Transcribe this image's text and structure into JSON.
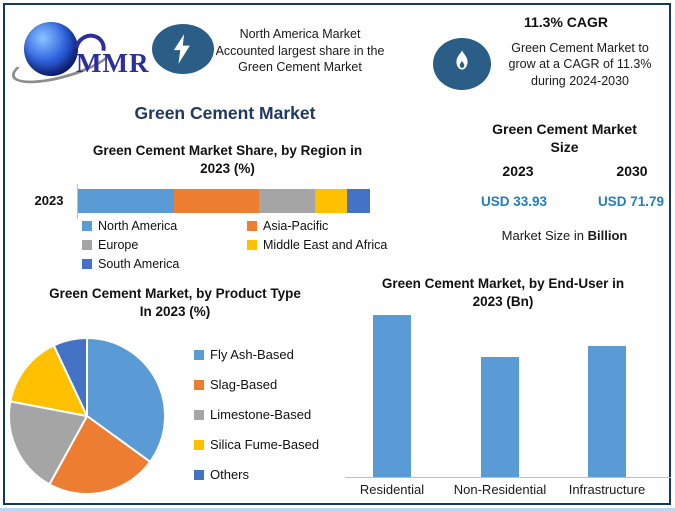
{
  "brand": {
    "logo_text": "MMR"
  },
  "header": {
    "highlight": {
      "icon": "lightning-icon",
      "lines": [
        "North America Market",
        "Accounted largest share in the",
        "Green Cement Market"
      ]
    },
    "cagr": {
      "icon": "flame-icon",
      "title": "11.3% CAGR",
      "lines": [
        "Green Cement Market to",
        "grow at a CAGR of 11.3%",
        "during 2024-2030"
      ]
    }
  },
  "main_title": "Green Cement Market",
  "market_size": {
    "title_lines": [
      "Green Cement Market",
      "Size"
    ],
    "years": [
      "2023",
      "2030"
    ],
    "values": [
      "USD 33.93",
      "USD 71.79"
    ],
    "note_prefix": "Market Size in ",
    "note_bold": "Billion",
    "value_color": "#1F7EC2"
  },
  "colors": {
    "accent_navy": "#1F3864",
    "badge_blue": "#2A5E86",
    "frame_border": "#17375E",
    "bottom_accent": "#BDD7EE",
    "axis_gray": "#BFBFBF"
  },
  "chart_data": [
    {
      "id": "region_share",
      "type": "bar",
      "subtype": "horizontal-stacked",
      "title": "Green Cement Market Share, by Region in 2023 (%)",
      "title_lines": [
        "Green Cement Market Share, by Region in",
        "2023 (%)"
      ],
      "category": "2023",
      "unit": "%",
      "legend_position": "bottom",
      "series": [
        {
          "name": "North America",
          "value": 33,
          "color": "#5B9BD5"
        },
        {
          "name": "Asia-Pacific",
          "value": 29,
          "color": "#ED7D31"
        },
        {
          "name": "Europe",
          "value": 19,
          "color": "#A5A5A5"
        },
        {
          "name": "Middle East and Africa",
          "value": 11,
          "color": "#FFC000"
        },
        {
          "name": "South America",
          "value": 8,
          "color": "#4472C4"
        }
      ],
      "note": "segment sizes estimated from bar widths; no data labels shown"
    },
    {
      "id": "product_type",
      "type": "pie",
      "title": "Green Cement Market, by Product Type In 2023 (%)",
      "title_lines": [
        "Green Cement Market, by Product Type",
        "In 2023 (%)"
      ],
      "legend_position": "right",
      "slices": [
        {
          "name": "Fly Ash-Based",
          "value": 35,
          "color": "#5B9BD5"
        },
        {
          "name": "Slag-Based",
          "value": 23,
          "color": "#ED7D31"
        },
        {
          "name": "Limestone-Based",
          "value": 20,
          "color": "#A5A5A5"
        },
        {
          "name": "Silica Fume-Based",
          "value": 15,
          "color": "#FFC000"
        },
        {
          "name": "Others",
          "value": 7,
          "color": "#4472C4"
        }
      ],
      "note": "slice sizes estimated from pie angles; no data labels shown"
    },
    {
      "id": "end_user",
      "type": "bar",
      "subtype": "vertical",
      "title": "Green Cement Market, by End-User in 2023 (Bn)",
      "title_lines": [
        "Green Cement Market, by End-User in",
        "2023 (Bn)"
      ],
      "categories": [
        "Residential",
        "Non-Residential",
        "Infrastructure"
      ],
      "values_relative": [
        100,
        74,
        81
      ],
      "bar_color": "#5B9BD5",
      "note": "no value axis shown; bar heights relative to tallest bar = 100"
    }
  ]
}
